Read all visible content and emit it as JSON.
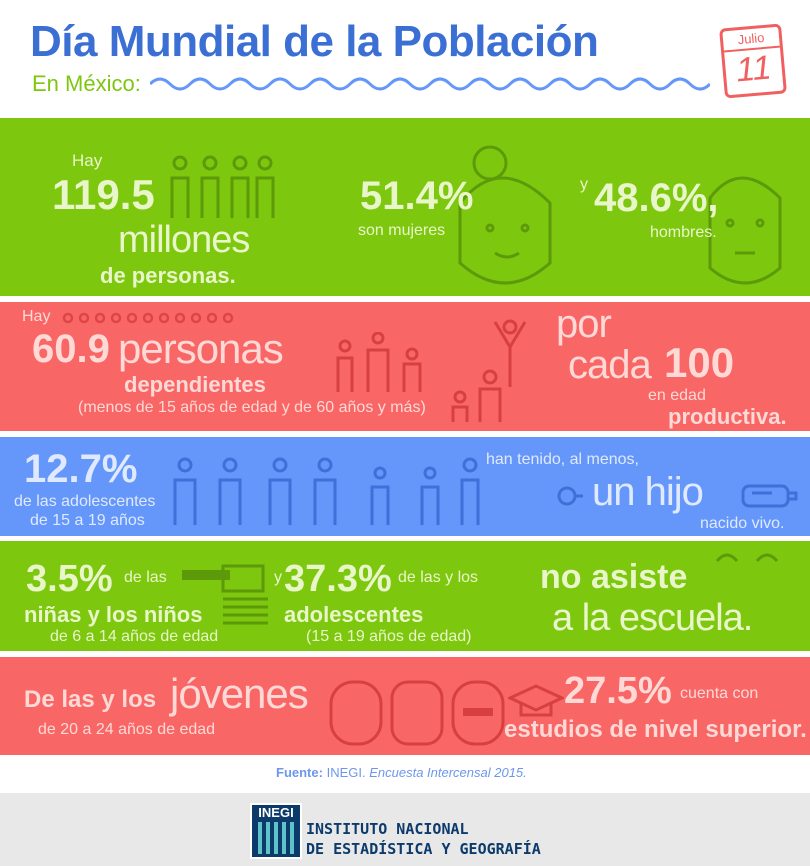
{
  "header": {
    "title": "Día Mundial de la Población",
    "subtitle": "En México:",
    "calendar_month": "Julio",
    "calendar_day": "11"
  },
  "section1": {
    "hay": "Hay",
    "population": "119.5",
    "millones": "millones",
    "de_personas": "de personas.",
    "women_pct": "51.4%",
    "women_label": "son mujeres",
    "y": "y",
    "men_pct": "48.6%,",
    "men_label": "hombres."
  },
  "section2": {
    "hay": "Hay",
    "value": "60.9",
    "personas": "personas",
    "dependientes": "dependientes",
    "note": "(menos de 15 años de edad y de 60 años y más)",
    "por": "por",
    "cada": "cada",
    "cien": "100",
    "en_edad": "en edad",
    "productiva": "productiva."
  },
  "section3": {
    "pct": "12.7%",
    "label1": "de las adolescentes",
    "label2": "de 15 a 19 años",
    "han_tenido": "han tenido, al menos,",
    "un_hijo": "un hijo",
    "nacido_vivo": "nacido vivo."
  },
  "section4": {
    "pct1": "3.5%",
    "de_las": "de las",
    "ninos": "niñas y los niños",
    "edad1": "de 6 a 14 años de edad",
    "y": "y",
    "pct2": "37.3%",
    "de_las_y_los": "de las y los",
    "adolescentes": "adolescentes",
    "edad2": "(15 a 19 años de edad)",
    "no_asiste": "no asiste",
    "escuela": "a la escuela."
  },
  "section5": {
    "de_las_y_los": "De las y los",
    "jovenes": "jóvenes",
    "edad": "de 20 a 24 años de edad",
    "pct": "27.5%",
    "cuenta_con": "cuenta con",
    "estudios": "estudios de nivel superior."
  },
  "source": {
    "label": "Fuente:",
    "org": "INEGI.",
    "survey": "Encuesta Intercensal 2015."
  },
  "footer": {
    "logo_text": "INEGI",
    "line1": "INSTITUTO NACIONAL",
    "line2": "DE ESTADÍSTICA Y GEOGRAFÍA"
  },
  "colors": {
    "green": "#7ec70f",
    "red": "#f96666",
    "blue": "#6597fb",
    "title": "#3b6fd4"
  }
}
